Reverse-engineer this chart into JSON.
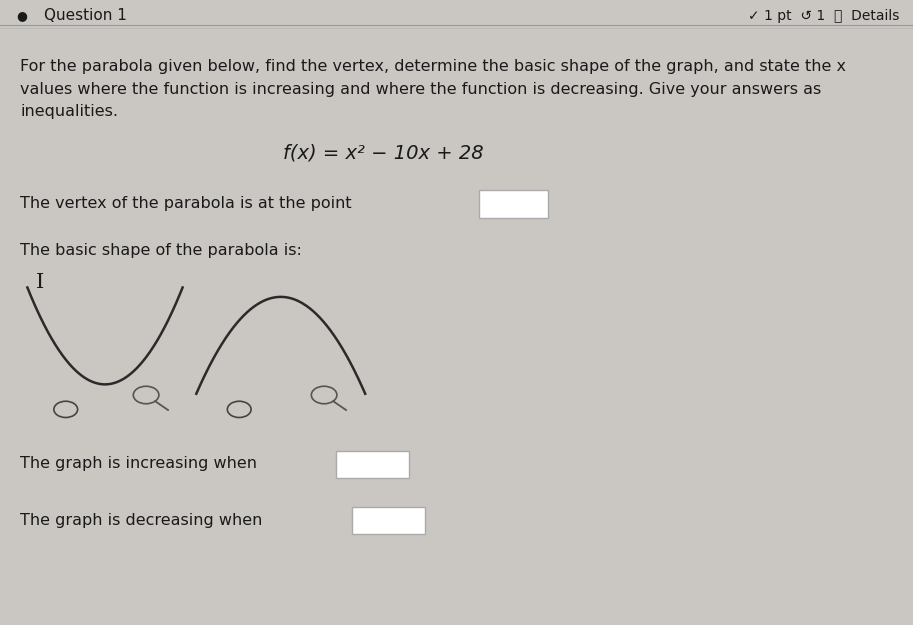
{
  "bg_color": "#cac6c2",
  "question_label": "Question 1",
  "question_dot_color": "#1a1a1a",
  "top_right_text": "✓ 1 pt  ↺ 1  ⓘ  Details",
  "instruction_text": "For the parabola given below, find the vertex, determine the basic shape of the graph, and state the x\nvalues where the function is increasing and where the function is decreasing. Give your answers as\ninequalities.",
  "function_text": "f(x) = x² − 10x + 28",
  "vertex_label": "The vertex of the parabola is at the point",
  "shape_label": "The basic shape of the parabola is:",
  "increasing_label": "The graph is increasing when",
  "decreasing_label": "The graph is decreasing when",
  "font_size_instruction": 11.5,
  "font_size_question": 11.5,
  "font_size_formula": 14,
  "text_color": "#1a1a1a",
  "box_color": "#ffffff",
  "box_edge_color": "#aaaaaa",
  "line_color": "#bbbbbb"
}
